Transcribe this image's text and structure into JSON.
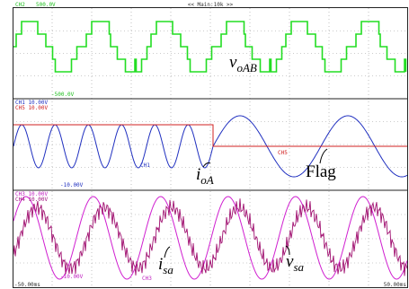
{
  "header": {
    "channel": "CH2",
    "scale": "500.0V",
    "timebase": "<< Main:10k >>",
    "bottom_scale": "-500.0V"
  },
  "panels": [
    {
      "channel_labels": [
        "CH1 10.00V",
        "CH5 10.00V"
      ],
      "bottom_scale": "-10.00V",
      "trace_labels": [
        "CH1",
        "CH5"
      ]
    },
    {
      "channel_labels": [
        "CH3 10.00V",
        "CH4 10.00V"
      ],
      "bottom_scale": "-10.00V",
      "trace_labels": [
        "CH3"
      ]
    }
  ],
  "annotations": [
    {
      "text": "v",
      "sub": "oAB"
    },
    {
      "text": "i",
      "sub": "oA"
    },
    {
      "text": "Flag"
    },
    {
      "text": "i",
      "sub": "sa"
    },
    {
      "text": "v",
      "sub": "sa"
    }
  ],
  "time_axis": {
    "start": "-50.00ms",
    "end": "50.00ms"
  }
}
